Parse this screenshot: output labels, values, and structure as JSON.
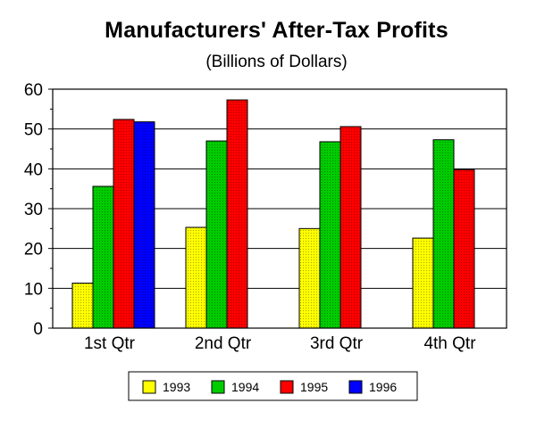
{
  "chart_data": {
    "type": "bar",
    "title": "Manufacturers' After-Tax Profits",
    "subtitle": "(Billions of Dollars)",
    "xlabel": "",
    "ylabel": "",
    "ylim": [
      0,
      60
    ],
    "yticks": [
      0,
      10,
      20,
      30,
      40,
      50,
      60
    ],
    "grid": true,
    "legend_position": "bottom",
    "categories": [
      "1st Qtr",
      "2nd Qtr",
      "3rd Qtr",
      "4th Qtr"
    ],
    "series": [
      {
        "name": "1993",
        "color": "#ffff00",
        "values": [
          11.3,
          25.3,
          25.0,
          22.6
        ]
      },
      {
        "name": "1994",
        "color": "#00cc00",
        "values": [
          35.6,
          47.0,
          46.8,
          47.3
        ]
      },
      {
        "name": "1995",
        "color": "#ff0000",
        "values": [
          52.4,
          57.3,
          50.6,
          39.8
        ]
      },
      {
        "name": "1996",
        "color": "#0000ff",
        "values": [
          51.8,
          null,
          null,
          null
        ]
      }
    ]
  }
}
